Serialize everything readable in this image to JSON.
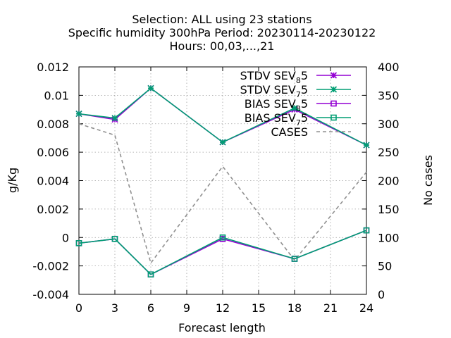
{
  "chart_data": {
    "type": "line",
    "title_lines": [
      "Selection: ALL using    23 stations",
      "Specific humidity 300hPa   Period: 20230114-20230122",
      "Hours:  00,03,...,21"
    ],
    "xlabel": "Forecast length",
    "ylabel": "g/Kg",
    "y2label": "No cases",
    "x": [
      0,
      3,
      6,
      12,
      18,
      24
    ],
    "xlim": [
      0,
      24
    ],
    "xticks": [
      "0",
      "3",
      "6",
      "9",
      "12",
      "15",
      "18",
      "21",
      "24"
    ],
    "ylim": [
      -0.004,
      0.012
    ],
    "yticks": [
      "-0.004",
      "-0.002",
      "0",
      "0.002",
      "0.004",
      "0.006",
      "0.008",
      "0.01",
      "0.012"
    ],
    "y2lim": [
      0,
      400
    ],
    "y2ticks": [
      "0",
      "50",
      "100",
      "150",
      "200",
      "250",
      "300",
      "350",
      "400"
    ],
    "grid": true,
    "legend_position": "top-right",
    "series": [
      {
        "name": "STDV SEV_8 5",
        "label_main": "STDV SEV",
        "label_sub": "8",
        "label_tail": "5",
        "axis": "y1",
        "color": "#9400d3",
        "marker": "star",
        "values": [
          0.0087,
          0.0083,
          0.0105,
          0.0067,
          0.009,
          0.0065
        ]
      },
      {
        "name": "STDV SEV_7 5",
        "label_main": "STDV SEV",
        "label_sub": "7",
        "label_tail": "5",
        "axis": "y1",
        "color": "#009e73",
        "marker": "star",
        "values": [
          0.0087,
          0.0084,
          0.0105,
          0.0067,
          0.0091,
          0.0065
        ]
      },
      {
        "name": "BIAS SEV_8 5",
        "label_main": "BIAS SEV",
        "label_sub": "8",
        "label_tail": "5",
        "axis": "y1",
        "color": "#9400d3",
        "marker": "square",
        "values": [
          -0.0004,
          -0.0001,
          -0.0026,
          -0.0001,
          -0.0015,
          0.0005
        ]
      },
      {
        "name": "BIAS SEV_7 5",
        "label_main": "BIAS SEV",
        "label_sub": "7",
        "label_tail": "5",
        "axis": "y1",
        "color": "#009e73",
        "marker": "square",
        "values": [
          -0.0004,
          -0.0001,
          -0.0026,
          0.0,
          -0.0015,
          0.0005
        ]
      },
      {
        "name": "CASES",
        "label_main": "CASES",
        "label_sub": "",
        "label_tail": "",
        "axis": "y2",
        "color": "#909090",
        "marker": "none",
        "dash": true,
        "values": [
          300,
          280,
          55,
          225,
          60,
          215
        ]
      }
    ]
  }
}
